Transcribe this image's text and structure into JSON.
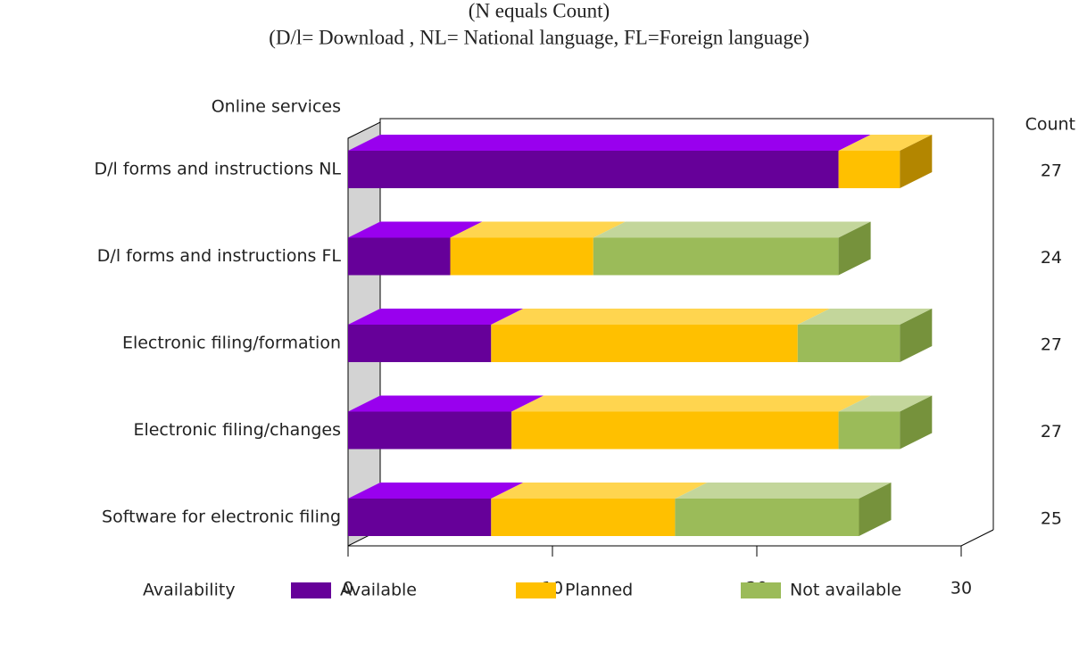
{
  "chart_data": {
    "type": "bar3d_stacked_horizontal",
    "title": "(N equals Count)",
    "subtitle": "(D/l= Download , NL= National language, FL=Foreign language)",
    "y_label": "Online services",
    "count_label": "Count",
    "legend_title": "Availability",
    "categories": [
      "D/l forms and instructions NL",
      "D/l forms and instructions FL",
      "Electronic filing/formation",
      "Electronic filing/changes",
      "Software for electronic filing"
    ],
    "counts": [
      27,
      24,
      27,
      27,
      25
    ],
    "series": [
      {
        "name": "Available",
        "color": "#660099",
        "top_color": "#9900ee",
        "side_color": "#440066",
        "values": [
          24,
          5,
          7,
          8,
          7
        ]
      },
      {
        "name": "Planned",
        "color": "#ffc000",
        "top_color": "#ffd54f",
        "side_color": "#b38600",
        "values": [
          3,
          7,
          15,
          16,
          9
        ]
      },
      {
        "name": "Not available",
        "color": "#9bbb59",
        "top_color": "#c3d69b",
        "side_color": "#76923c",
        "values": [
          0,
          12,
          5,
          3,
          9
        ]
      }
    ],
    "xlim": [
      0,
      30
    ],
    "xticks": [
      0,
      10,
      20,
      30
    ]
  }
}
